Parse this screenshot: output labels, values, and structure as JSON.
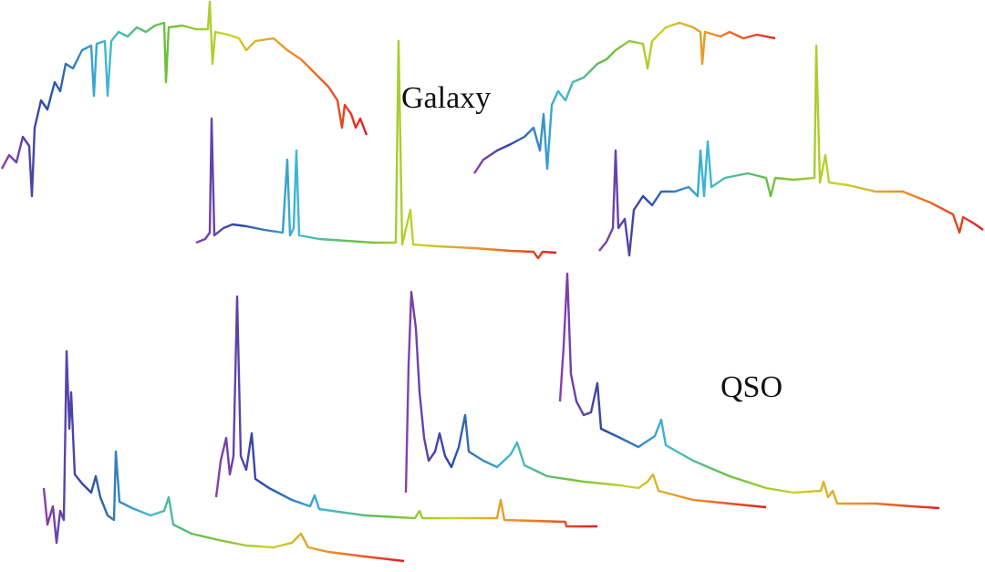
{
  "labels": {
    "galaxy": "Galaxy",
    "qso": "QSO"
  }
}
